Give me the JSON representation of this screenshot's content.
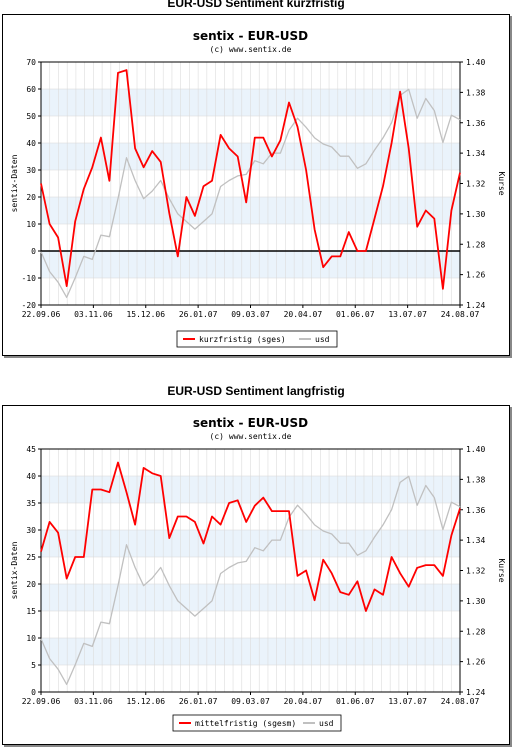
{
  "charts_meta": [
    {
      "heading": "EUR-USD Sentiment kurzfristig",
      "title": "sentix - EUR-USD",
      "subtitle": "(c) www.sentix.de"
    },
    {
      "heading": "EUR-USD Sentiment langfristig",
      "title": "sentix - EUR-USD",
      "subtitle": "(c) www.sentix.de"
    }
  ],
  "chart_data": [
    {
      "type": "line",
      "title": "sentix - EUR-USD",
      "subtitle": "(c) www.sentix.de",
      "ylabel": "sentix-Daten",
      "y2label": "Kurse",
      "ylim": [
        -20,
        70
      ],
      "y2lim": [
        1.24,
        1.4
      ],
      "yticks": [
        -20,
        -10,
        0,
        10,
        20,
        30,
        40,
        50,
        60,
        70
      ],
      "y2ticks": [
        "1.24",
        "1.26",
        "1.28",
        "1.30",
        "1.32",
        "1.34",
        "1.36",
        "1.38",
        "1.40"
      ],
      "xtick_labels": [
        "22.09.06",
        "03.11.06",
        "15.12.06",
        "26.01.07",
        "09.03.07",
        "20.04.07",
        "01.06.07",
        "13.07.07",
        "24.08.07"
      ],
      "zero_line": true,
      "grid": true,
      "legend_position": "bottom",
      "series": [
        {
          "name": "kurzfristig (sges)",
          "axis": "left",
          "color": "#ff0000",
          "values": [
            25,
            10,
            5,
            -13,
            11,
            23,
            31,
            42,
            26,
            66,
            67,
            38,
            31,
            37,
            33,
            14,
            -2,
            20,
            13,
            24,
            26,
            43,
            38,
            35,
            18,
            42,
            42,
            35,
            41,
            55,
            46,
            30,
            8,
            -6,
            -2,
            -2,
            7,
            0,
            0,
            12,
            24,
            40,
            59,
            38,
            9,
            15,
            12,
            -14,
            15,
            29
          ]
        },
        {
          "name": "usd",
          "axis": "right",
          "color": "#c0c0c0",
          "values": [
            1.275,
            1.262,
            1.255,
            1.245,
            1.258,
            1.272,
            1.27,
            1.286,
            1.285,
            1.31,
            1.337,
            1.322,
            1.31,
            1.315,
            1.322,
            1.31,
            1.3,
            1.295,
            1.29,
            1.295,
            1.3,
            1.318,
            1.322,
            1.325,
            1.326,
            1.335,
            1.333,
            1.34,
            1.34,
            1.355,
            1.363,
            1.357,
            1.35,
            1.346,
            1.344,
            1.338,
            1.338,
            1.33,
            1.333,
            1.342,
            1.35,
            1.36,
            1.378,
            1.382,
            1.363,
            1.376,
            1.368,
            1.347,
            1.365,
            1.362
          ]
        }
      ]
    },
    {
      "type": "line",
      "title": "sentix - EUR-USD",
      "subtitle": "(c) www.sentix.de",
      "ylabel": "sentix-Daten",
      "y2label": "Kurse",
      "ylim": [
        0,
        45
      ],
      "y2lim": [
        1.24,
        1.4
      ],
      "yticks": [
        0,
        5,
        10,
        15,
        20,
        25,
        30,
        35,
        40,
        45
      ],
      "y2ticks": [
        "1.24",
        "1.26",
        "1.28",
        "1.30",
        "1.32",
        "1.34",
        "1.36",
        "1.38",
        "1.40"
      ],
      "xtick_labels": [
        "22.09.06",
        "03.11.06",
        "15.12.06",
        "26.01.07",
        "09.03.07",
        "20.04.07",
        "01.06.07",
        "13.07.07",
        "24.08.07"
      ],
      "zero_line": false,
      "grid": true,
      "legend_position": "bottom",
      "series": [
        {
          "name": "mittelfristig (sgesm)",
          "axis": "left",
          "color": "#ff0000",
          "values": [
            26,
            31.5,
            29.5,
            21,
            25,
            25,
            37.5,
            37.5,
            37,
            42.5,
            37,
            31,
            41.5,
            40.5,
            40,
            28.5,
            32.5,
            32.5,
            31.5,
            27.5,
            32.5,
            31,
            35,
            35.5,
            31.5,
            34.5,
            36,
            33.5,
            33.5,
            33.5,
            21.5,
            22.5,
            17,
            24.5,
            22,
            18.5,
            18,
            20.5,
            15,
            19,
            18,
            25,
            22,
            19.5,
            23,
            23.5,
            23.5,
            21.5,
            29,
            34
          ]
        },
        {
          "name": "usd",
          "axis": "right",
          "color": "#c0c0c0",
          "values": [
            1.275,
            1.262,
            1.255,
            1.245,
            1.258,
            1.272,
            1.27,
            1.286,
            1.285,
            1.31,
            1.337,
            1.322,
            1.31,
            1.315,
            1.322,
            1.31,
            1.3,
            1.295,
            1.29,
            1.295,
            1.3,
            1.318,
            1.322,
            1.325,
            1.326,
            1.335,
            1.333,
            1.34,
            1.34,
            1.355,
            1.363,
            1.357,
            1.35,
            1.346,
            1.344,
            1.338,
            1.338,
            1.33,
            1.333,
            1.342,
            1.35,
            1.36,
            1.378,
            1.382,
            1.363,
            1.376,
            1.368,
            1.347,
            1.365,
            1.362
          ]
        }
      ]
    }
  ]
}
